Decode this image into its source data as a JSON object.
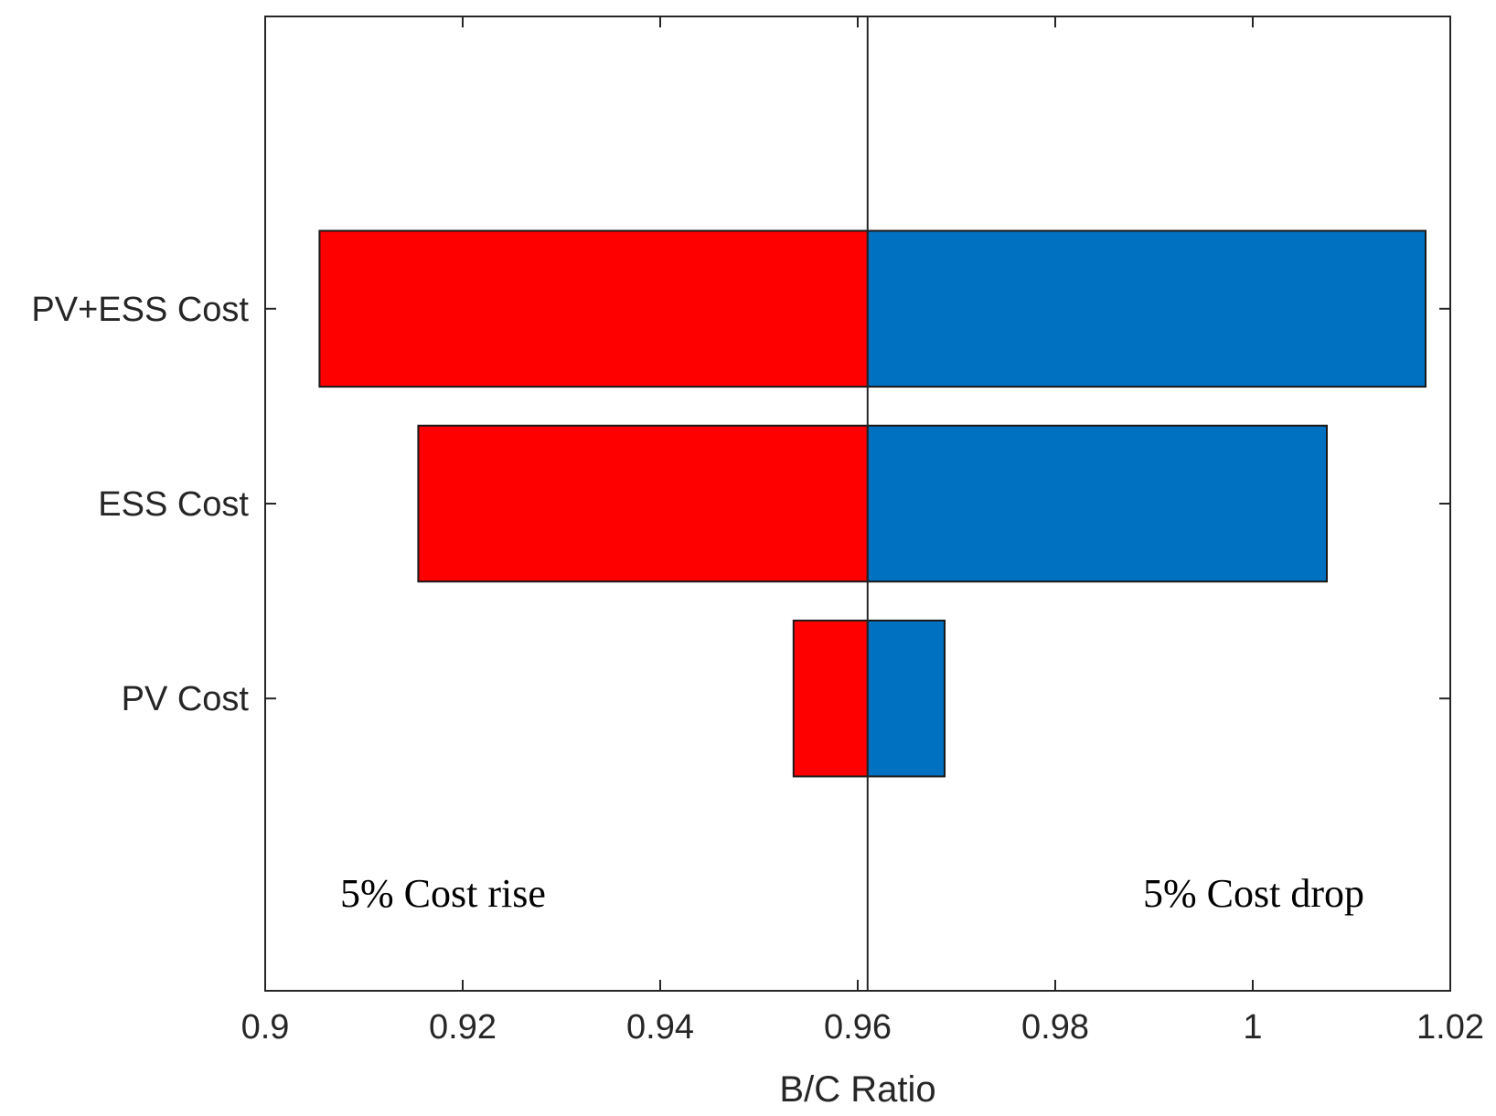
{
  "chart_data": {
    "type": "bar",
    "orientation": "horizontal",
    "layout": "tornado",
    "baseline": 0.961,
    "categories": [
      "PV Cost",
      "ESS Cost",
      "PV+ESS Cost"
    ],
    "series": [
      {
        "low": 0.953,
        "high": 0.961,
        "color": "#ff0000"
      },
      {
        "low": 0.961,
        "high": 0.969,
        "color": "#0070c0"
      }
    ],
    "bars": [
      {
        "category": "PV+ESS Cost",
        "rise_low": 0.9055,
        "drop_high": 1.0175
      },
      {
        "category": "ESS Cost",
        "rise_low": 0.9155,
        "drop_high": 1.0075
      },
      {
        "category": "PV Cost",
        "rise_low": 0.9535,
        "drop_high": 0.9688
      }
    ],
    "title": "",
    "xlabel": "B/C Ratio",
    "ylabel": "",
    "xlim": [
      0.9,
      1.02
    ],
    "xticks": [
      "0.9",
      "0.92",
      "0.94",
      "0.96",
      "0.98",
      "1",
      "1.02"
    ],
    "annotations": {
      "left": "5% Cost rise",
      "right": "5% Cost drop"
    },
    "grid": false,
    "legend": "none",
    "colors": {
      "rise": "#ff0000",
      "drop": "#0070c0"
    }
  }
}
